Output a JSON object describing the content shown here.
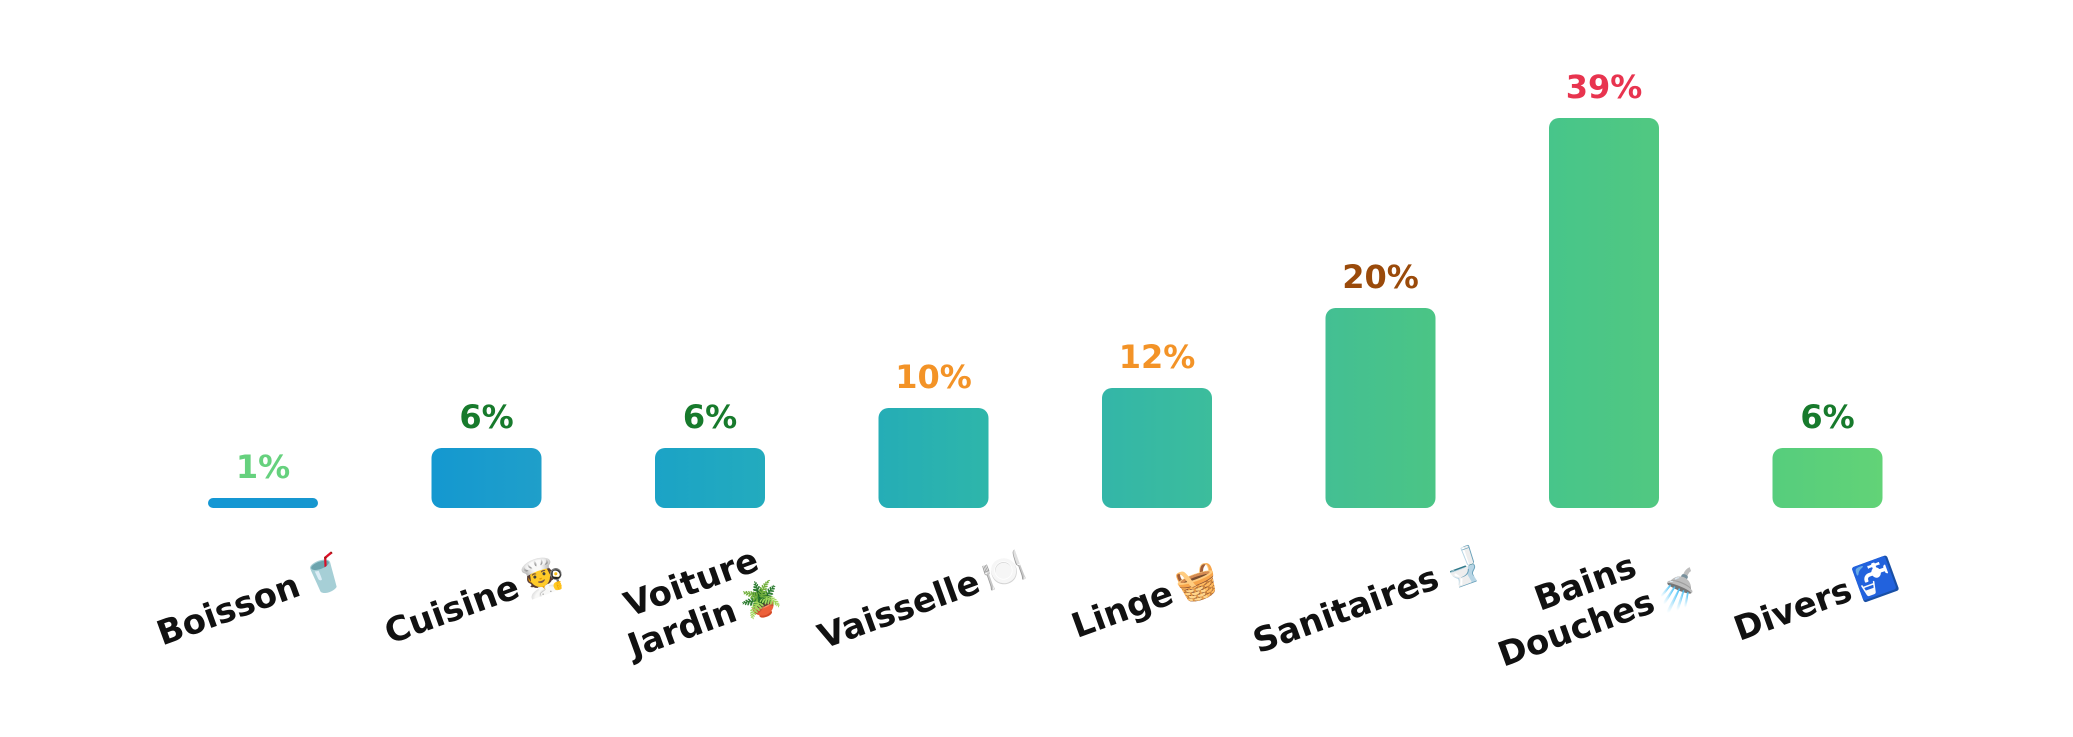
{
  "chart_data": {
    "type": "bar",
    "title": "",
    "xlabel": "",
    "ylabel": "",
    "ylim": [
      0,
      40
    ],
    "categories": [
      {
        "lines": [
          "Boisson"
        ],
        "emoji": "🥤"
      },
      {
        "lines": [
          "Cuisine"
        ],
        "emoji": "🧑‍🍳"
      },
      {
        "lines": [
          "Voiture",
          "Jardin"
        ],
        "emoji": "🪴"
      },
      {
        "lines": [
          "Vaisselle"
        ],
        "emoji": "🍽️"
      },
      {
        "lines": [
          "Linge"
        ],
        "emoji": "🧺"
      },
      {
        "lines": [
          "Sanitaires"
        ],
        "emoji": "🚽"
      },
      {
        "lines": [
          "Bains",
          "Douches"
        ],
        "emoji": "🚿"
      },
      {
        "lines": [
          "Divers"
        ],
        "emoji": "🚰"
      }
    ],
    "values": [
      1,
      6,
      6,
      10,
      12,
      20,
      39,
      6
    ],
    "value_labels": [
      "1%",
      "6%",
      "6%",
      "10%",
      "12%",
      "20%",
      "39%",
      "6%"
    ],
    "value_label_colors": [
      "#66d17e",
      "#177a2c",
      "#177a2c",
      "#f39327",
      "#f39327",
      "#9a4a0a",
      "#e8344f",
      "#177a2c"
    ],
    "bar_colors": [
      [
        "#1497d4",
        "#1797cf"
      ],
      [
        "#1498d0",
        "#1f9fca"
      ],
      [
        "#1ba3c6",
        "#23abbe"
      ],
      [
        "#25adb6",
        "#2eb6aa"
      ],
      [
        "#33b6a8",
        "#3cbd9c"
      ],
      [
        "#43bf93",
        "#4bc585"
      ],
      [
        "#47c58a",
        "#51c881"
      ],
      [
        "#56cd7d",
        "#62d377"
      ]
    ]
  }
}
